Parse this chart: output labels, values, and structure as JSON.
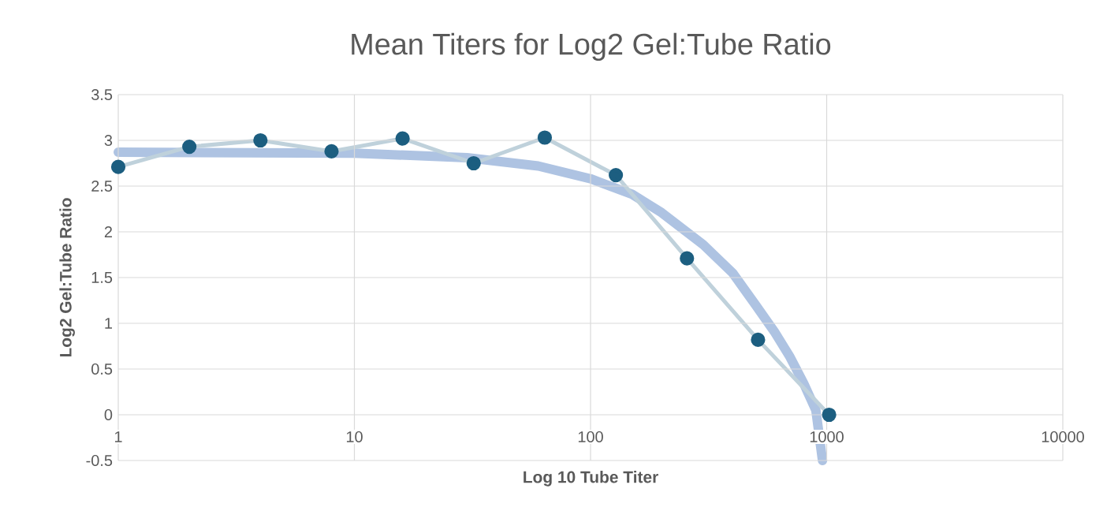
{
  "chart_data": {
    "type": "line",
    "title": "Mean Titers for Log2 Gel:Tube Ratio",
    "xlabel": "Log 10 Tube Titer",
    "ylabel": "Log2 Gel:Tube Ratio",
    "log": "x",
    "grid": true,
    "xlim": [
      1,
      10000
    ],
    "ylim": [
      -0.5,
      3.5
    ],
    "xticks": [
      1,
      10,
      100,
      1000,
      10000
    ],
    "yticks": [
      -0.5,
      0,
      0.5,
      1,
      1.5,
      2,
      2.5,
      3,
      3.5
    ],
    "series": [
      {
        "marker": "circle",
        "color": "#1c5e80",
        "x": [
          1,
          2,
          4,
          8,
          16,
          32,
          64,
          128,
          256,
          512,
          1024
        ],
        "values": [
          2.71,
          2.93,
          3.0,
          2.88,
          3.02,
          2.75,
          3.03,
          2.62,
          1.71,
          0.82,
          0
        ]
      },
      {
        "marker": "none",
        "color": "#aec3e2",
        "x": [
          1,
          10,
          30,
          60,
          100,
          150,
          200,
          300,
          400,
          500,
          600,
          700,
          800,
          900,
          960
        ],
        "values": [
          2.87,
          2.86,
          2.81,
          2.72,
          2.58,
          2.41,
          2.21,
          1.86,
          1.55,
          1.2,
          0.91,
          0.63,
          0.34,
          0.05,
          -0.5
        ]
      }
    ]
  }
}
